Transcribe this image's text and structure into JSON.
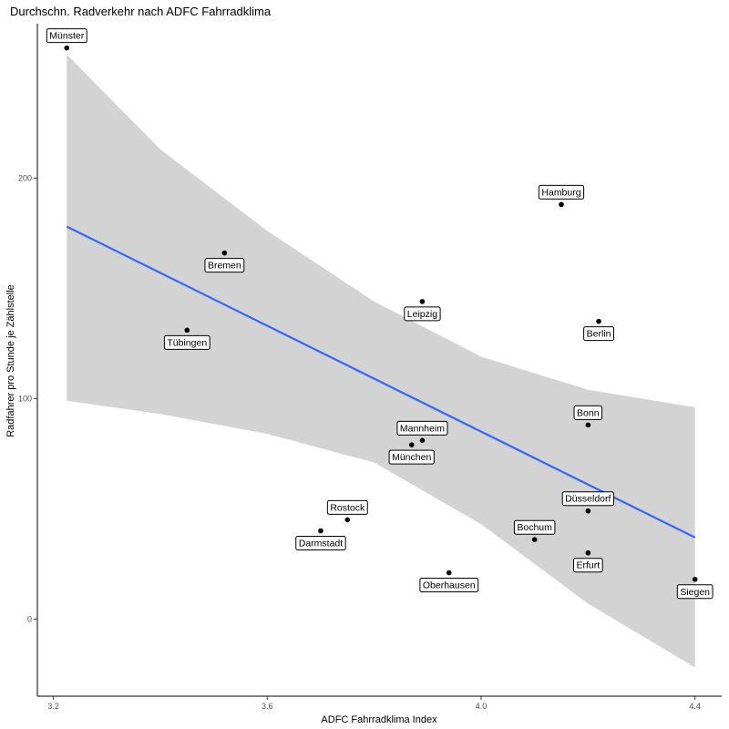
{
  "chart_data": {
    "type": "scatter",
    "title": "Durchschn. Radverkehr nach ADFC Fahrradklima",
    "xlabel": "ADFC Fahrradklima Index",
    "ylabel": "Radfahrer pro Stunde je Zählstelle",
    "xlim": [
      3.17,
      4.45
    ],
    "ylim": [
      -35,
      270
    ],
    "xticks": [
      3.2,
      3.6,
      4.0,
      4.4
    ],
    "xtick_labels": [
      "3.2",
      "3.6",
      "4.0",
      "4.4"
    ],
    "yticks": [
      0,
      100,
      200
    ],
    "ytick_labels": [
      "0",
      "100",
      "200"
    ],
    "grid": false,
    "points": [
      {
        "label": "Münster",
        "x": 3.225,
        "y": 259,
        "label_pos": "above"
      },
      {
        "label": "Hamburg",
        "x": 4.15,
        "y": 188,
        "label_pos": "above"
      },
      {
        "label": "Bremen",
        "x": 3.52,
        "y": 166,
        "label_pos": "below"
      },
      {
        "label": "Leipzig",
        "x": 3.89,
        "y": 144,
        "label_pos": "below"
      },
      {
        "label": "Berlin",
        "x": 4.22,
        "y": 135,
        "label_pos": "below"
      },
      {
        "label": "Tübingen",
        "x": 3.45,
        "y": 131,
        "label_pos": "below"
      },
      {
        "label": "Bonn",
        "x": 4.2,
        "y": 88,
        "label_pos": "above"
      },
      {
        "label": "Mannheim",
        "x": 3.89,
        "y": 81,
        "label_pos": "above"
      },
      {
        "label": "München",
        "x": 3.87,
        "y": 79,
        "label_pos": "below"
      },
      {
        "label": "Düsseldorf",
        "x": 4.2,
        "y": 49,
        "label_pos": "above"
      },
      {
        "label": "Rostock",
        "x": 3.75,
        "y": 45,
        "label_pos": "above"
      },
      {
        "label": "Darmstadt",
        "x": 3.7,
        "y": 40,
        "label_pos": "below"
      },
      {
        "label": "Bochum",
        "x": 4.1,
        "y": 36,
        "label_pos": "above"
      },
      {
        "label": "Erfurt",
        "x": 4.2,
        "y": 30,
        "label_pos": "below"
      },
      {
        "label": "Oberhausen",
        "x": 3.94,
        "y": 21,
        "label_pos": "below"
      },
      {
        "label": "Siegen",
        "x": 4.4,
        "y": 18,
        "label_pos": "below"
      }
    ],
    "fit": {
      "type": "linear",
      "x": [
        3.225,
        4.4
      ],
      "y": [
        178,
        37
      ],
      "color": "#3366ff"
    },
    "ci_band": {
      "x": [
        3.225,
        3.4,
        3.6,
        3.8,
        4.0,
        4.2,
        4.4
      ],
      "upper": [
        256,
        213,
        176,
        144,
        119,
        104,
        96
      ],
      "lower": [
        99,
        93,
        84,
        71,
        43,
        7,
        -22
      ],
      "color": "#d3d3d3"
    },
    "colors": {
      "point": "#000000",
      "axis": "#000000",
      "tick_text": "#4d4d4d"
    }
  }
}
